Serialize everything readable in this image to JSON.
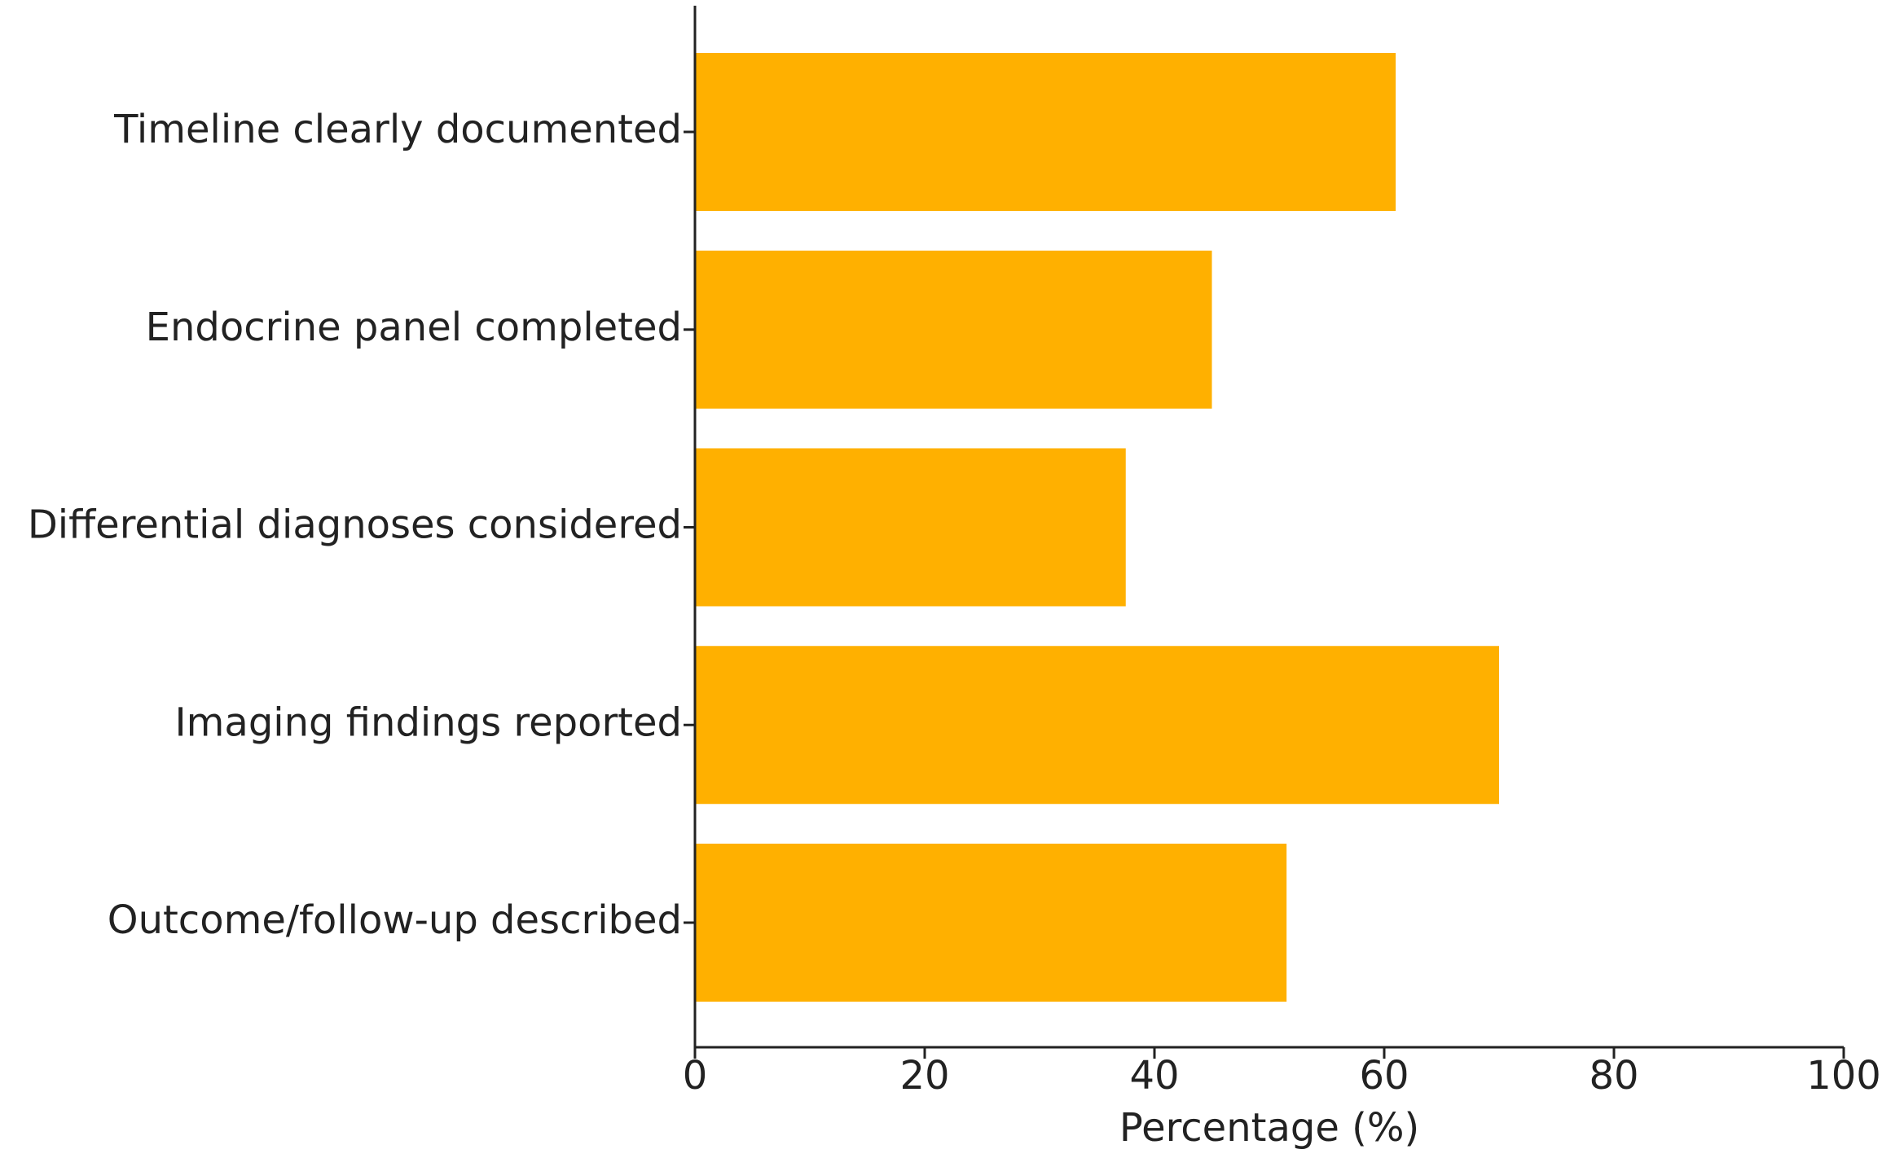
{
  "chart_data": {
    "type": "barh",
    "xlabel": "Percentage (%)",
    "categories": [
      "Timeline clearly documented",
      "Endocrine panel completed",
      "Differential diagnoses considered",
      "Imaging findings reported",
      "Outcome/follow-up described"
    ],
    "values": [
      61,
      45,
      37.5,
      70,
      51.5
    ],
    "color": "#ffb000",
    "xlim": [
      0,
      100
    ],
    "xticks": [
      0,
      20,
      40,
      60,
      80,
      100
    ]
  }
}
